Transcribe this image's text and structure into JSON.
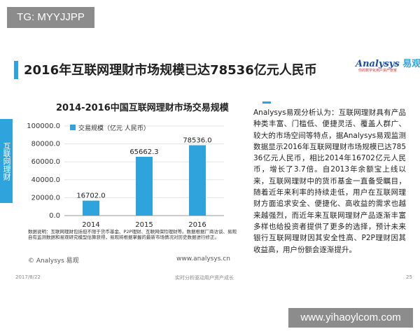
{
  "badge": "TG: MYYJJPP",
  "main_title": "2016年互联网理财市场规模已达78536亿元人民币",
  "logo": {
    "name": "Analysys",
    "cn": "易观",
    "tagline": "你的数字化用户资产管家"
  },
  "side_tab": "互联网理财",
  "chart_data": {
    "type": "bar",
    "title": "2014-2016中国互联网理财市场交易规模",
    "categories": [
      "2014",
      "2015",
      "2016"
    ],
    "series": [
      {
        "name": "交易规模（亿元 人民币）",
        "values": [
          16702.0,
          65662.3,
          78536.0
        ],
        "labels": [
          "16702.0",
          "65662.3",
          "78536.0"
        ]
      }
    ],
    "y_ticks": [
      "0.0",
      "20000.0",
      "40000.0",
      "60000.0",
      "80000.0",
      "100000.0"
    ],
    "ylim": [
      0,
      100000
    ],
    "legend_position": "top-left",
    "bar_color": "#2fa4dc"
  },
  "note": "数据说明：互联网理财包括但不限于货币基金、P2P理财、互联网保险理财等。数据根据厂商访谈、易观自有监测数据和易观研究模型估算获得，易观将根据掌握的最新市场情况对历史数据进行修正。",
  "copyright": "© Analysys 易观",
  "website": "www.analysys.cn",
  "footer": {
    "date": "2017/8/22",
    "center": "实时分析驱动用户资产成长",
    "page": "25"
  },
  "analysis": "Analysys易观分析认为：互联网理财具有产品种类丰富、门槛低、便捷灵活、覆盖人群广、较大的市场空间等特点，据Analysys易观监测数据显示2016年互联网理财市场规模已达78536亿元人民币，相比2014年16702亿元人民币，增长了3.7倍。自2013年余额宝上线以来，互联网理财中的货币基金一直备受瞩目，随着近年来利率的持续走低，用户在互联网理财方面追求安全、便捷化、高收益的需求也越来越强烈，而近年来互联网理财产品逐渐丰富多样也给投资者提供了更多的选择，预计未来银行互联网理财因其安全性高、P2P理财因其收益高，用户份额会逐渐提升。",
  "watermark": "www.yihaoylcom.com"
}
